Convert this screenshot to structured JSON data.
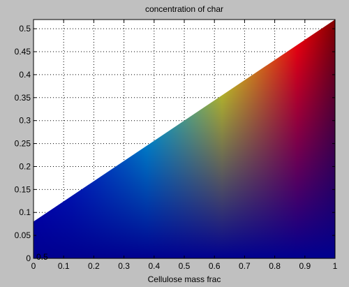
{
  "chart_data": {
    "type": "heatmap",
    "title": "concentration of char",
    "xlabel": "Cellulose mass frac",
    "ylabel": "",
    "xlim": [
      0,
      1
    ],
    "ylim": [
      0,
      0.52
    ],
    "xticks": [
      "0",
      "0.1",
      "0.2",
      "0.3",
      "0.4",
      "0.5",
      "0.6",
      "0.7",
      "0.8",
      "0.9",
      "1"
    ],
    "yticks": [
      "0",
      "0.05",
      "0.1",
      "0.15",
      "0.2",
      "0.25",
      "0.3",
      "0.35",
      "0.4",
      "0.45",
      "0.5"
    ],
    "grid": true,
    "colormap": "jet",
    "upper_boundary": {
      "x": [
        0,
        1
      ],
      "y": [
        0.08,
        0.52
      ]
    },
    "corner_label": "0.5",
    "background_color": "#c0c0c0",
    "axes_color": "#ffffff"
  }
}
